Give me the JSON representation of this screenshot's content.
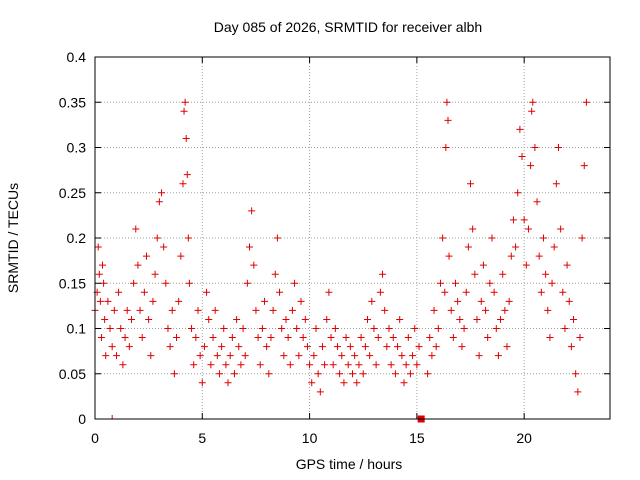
{
  "chart_data": {
    "type": "scatter",
    "title": "Day 085 of 2026, SRMTID for receiver albh",
    "xlabel": "GPS time / hours",
    "ylabel": "SRMTID / TECUs",
    "xlim": [
      0,
      24
    ],
    "ylim": [
      0,
      0.4
    ],
    "grid": true,
    "marker": "plus",
    "color": "#e00000",
    "xticks": [
      {
        "value": 0,
        "label": "0"
      },
      {
        "value": 5,
        "label": "5"
      },
      {
        "value": 10,
        "label": "10"
      },
      {
        "value": 15,
        "label": "15"
      },
      {
        "value": 20,
        "label": "20"
      }
    ],
    "yticks": [
      {
        "value": 0,
        "label": "0"
      },
      {
        "value": 0.05,
        "label": "0.05"
      },
      {
        "value": 0.1,
        "label": "0.1"
      },
      {
        "value": 0.15,
        "label": "0.15"
      },
      {
        "value": 0.2,
        "label": "0.2"
      },
      {
        "value": 0.25,
        "label": "0.25"
      },
      {
        "value": 0.3,
        "label": "0.3"
      },
      {
        "value": 0.35,
        "label": "0.35"
      },
      {
        "value": 0.4,
        "label": "0.4"
      }
    ],
    "zero_markers": [
      {
        "x": 0.8,
        "y": 0,
        "style": "tick"
      },
      {
        "x": 15.2,
        "y": 0,
        "style": "square"
      }
    ],
    "series": [
      {
        "name": "SRMTID",
        "points": [
          [
            0.0,
            0.12
          ],
          [
            0.1,
            0.14
          ],
          [
            0.15,
            0.19
          ],
          [
            0.2,
            0.16
          ],
          [
            0.25,
            0.13
          ],
          [
            0.3,
            0.09
          ],
          [
            0.35,
            0.17
          ],
          [
            0.4,
            0.15
          ],
          [
            0.45,
            0.11
          ],
          [
            0.5,
            0.07
          ],
          [
            0.6,
            0.13
          ],
          [
            0.7,
            0.1
          ],
          [
            0.8,
            0.08
          ],
          [
            0.9,
            0.12
          ],
          [
            1.0,
            0.07
          ],
          [
            1.1,
            0.14
          ],
          [
            1.2,
            0.1
          ],
          [
            1.3,
            0.06
          ],
          [
            1.4,
            0.09
          ],
          [
            1.5,
            0.12
          ],
          [
            1.6,
            0.08
          ],
          [
            1.7,
            0.11
          ],
          [
            1.8,
            0.15
          ],
          [
            1.9,
            0.21
          ],
          [
            2.0,
            0.17
          ],
          [
            2.1,
            0.12
          ],
          [
            2.2,
            0.09
          ],
          [
            2.3,
            0.14
          ],
          [
            2.4,
            0.18
          ],
          [
            2.5,
            0.11
          ],
          [
            2.6,
            0.07
          ],
          [
            2.7,
            0.13
          ],
          [
            2.8,
            0.16
          ],
          [
            2.9,
            0.2
          ],
          [
            3.0,
            0.24
          ],
          [
            3.1,
            0.25
          ],
          [
            3.2,
            0.19
          ],
          [
            3.3,
            0.15
          ],
          [
            3.4,
            0.1
          ],
          [
            3.5,
            0.08
          ],
          [
            3.6,
            0.12
          ],
          [
            3.7,
            0.05
          ],
          [
            3.8,
            0.09
          ],
          [
            3.9,
            0.13
          ],
          [
            4.0,
            0.18
          ],
          [
            4.1,
            0.26
          ],
          [
            4.15,
            0.34
          ],
          [
            4.2,
            0.35
          ],
          [
            4.25,
            0.31
          ],
          [
            4.3,
            0.27
          ],
          [
            4.35,
            0.2
          ],
          [
            4.4,
            0.15
          ],
          [
            4.5,
            0.1
          ],
          [
            4.6,
            0.06
          ],
          [
            4.7,
            0.09
          ],
          [
            4.8,
            0.12
          ],
          [
            4.9,
            0.07
          ],
          [
            5.0,
            0.04
          ],
          [
            5.1,
            0.08
          ],
          [
            5.2,
            0.14
          ],
          [
            5.3,
            0.11
          ],
          [
            5.4,
            0.06
          ],
          [
            5.5,
            0.09
          ],
          [
            5.6,
            0.12
          ],
          [
            5.7,
            0.07
          ],
          [
            5.8,
            0.05
          ],
          [
            5.9,
            0.08
          ],
          [
            6.0,
            0.1
          ],
          [
            6.1,
            0.06
          ],
          [
            6.2,
            0.04
          ],
          [
            6.3,
            0.07
          ],
          [
            6.4,
            0.09
          ],
          [
            6.5,
            0.05
          ],
          [
            6.6,
            0.11
          ],
          [
            6.7,
            0.08
          ],
          [
            6.8,
            0.06
          ],
          [
            6.9,
            0.1
          ],
          [
            7.0,
            0.07
          ],
          [
            7.1,
            0.15
          ],
          [
            7.2,
            0.19
          ],
          [
            7.3,
            0.23
          ],
          [
            7.4,
            0.17
          ],
          [
            7.5,
            0.12
          ],
          [
            7.6,
            0.09
          ],
          [
            7.7,
            0.06
          ],
          [
            7.8,
            0.1
          ],
          [
            7.9,
            0.13
          ],
          [
            8.0,
            0.08
          ],
          [
            8.1,
            0.05
          ],
          [
            8.2,
            0.09
          ],
          [
            8.3,
            0.12
          ],
          [
            8.4,
            0.16
          ],
          [
            8.5,
            0.2
          ],
          [
            8.6,
            0.14
          ],
          [
            8.7,
            0.1
          ],
          [
            8.8,
            0.07
          ],
          [
            8.9,
            0.11
          ],
          [
            9.0,
            0.09
          ],
          [
            9.1,
            0.06
          ],
          [
            9.2,
            0.12
          ],
          [
            9.3,
            0.15
          ],
          [
            9.4,
            0.1
          ],
          [
            9.5,
            0.07
          ],
          [
            9.6,
            0.13
          ],
          [
            9.7,
            0.09
          ],
          [
            9.8,
            0.11
          ],
          [
            9.9,
            0.08
          ],
          [
            10.0,
            0.06
          ],
          [
            10.1,
            0.04
          ],
          [
            10.2,
            0.07
          ],
          [
            10.3,
            0.1
          ],
          [
            10.4,
            0.05
          ],
          [
            10.5,
            0.03
          ],
          [
            10.6,
            0.08
          ],
          [
            10.7,
            0.06
          ],
          [
            10.8,
            0.11
          ],
          [
            10.9,
            0.14
          ],
          [
            11.0,
            0.09
          ],
          [
            11.1,
            0.06
          ],
          [
            11.2,
            0.1
          ],
          [
            11.3,
            0.08
          ],
          [
            11.4,
            0.05
          ],
          [
            11.5,
            0.07
          ],
          [
            11.6,
            0.04
          ],
          [
            11.7,
            0.09
          ],
          [
            11.8,
            0.06
          ],
          [
            11.9,
            0.08
          ],
          [
            12.0,
            0.05
          ],
          [
            12.1,
            0.07
          ],
          [
            12.2,
            0.04
          ],
          [
            12.3,
            0.06
          ],
          [
            12.4,
            0.09
          ],
          [
            12.5,
            0.05
          ],
          [
            12.6,
            0.08
          ],
          [
            12.7,
            0.11
          ],
          [
            12.8,
            0.07
          ],
          [
            12.9,
            0.13
          ],
          [
            13.0,
            0.1
          ],
          [
            13.1,
            0.06
          ],
          [
            13.2,
            0.09
          ],
          [
            13.3,
            0.14
          ],
          [
            13.4,
            0.16
          ],
          [
            13.5,
            0.12
          ],
          [
            13.6,
            0.08
          ],
          [
            13.7,
            0.1
          ],
          [
            13.8,
            0.06
          ],
          [
            13.9,
            0.09
          ],
          [
            14.0,
            0.05
          ],
          [
            14.1,
            0.08
          ],
          [
            14.2,
            0.11
          ],
          [
            14.3,
            0.07
          ],
          [
            14.4,
            0.04
          ],
          [
            14.5,
            0.06
          ],
          [
            14.6,
            0.09
          ],
          [
            14.7,
            0.05
          ],
          [
            14.8,
            0.07
          ],
          [
            14.9,
            0.1
          ],
          [
            15.0,
            0.06
          ],
          [
            15.1,
            0.08
          ],
          [
            15.5,
            0.05
          ],
          [
            15.6,
            0.09
          ],
          [
            15.7,
            0.07
          ],
          [
            15.8,
            0.12
          ],
          [
            15.9,
            0.08
          ],
          [
            16.0,
            0.1
          ],
          [
            16.1,
            0.15
          ],
          [
            16.2,
            0.2
          ],
          [
            16.3,
            0.14
          ],
          [
            16.35,
            0.3
          ],
          [
            16.4,
            0.35
          ],
          [
            16.45,
            0.33
          ],
          [
            16.5,
            0.18
          ],
          [
            16.6,
            0.12
          ],
          [
            16.7,
            0.09
          ],
          [
            16.8,
            0.15
          ],
          [
            16.9,
            0.13
          ],
          [
            17.0,
            0.11
          ],
          [
            17.1,
            0.08
          ],
          [
            17.2,
            0.1
          ],
          [
            17.3,
            0.14
          ],
          [
            17.4,
            0.19
          ],
          [
            17.5,
            0.26
          ],
          [
            17.6,
            0.21
          ],
          [
            17.7,
            0.16
          ],
          [
            17.8,
            0.11
          ],
          [
            17.9,
            0.07
          ],
          [
            18.0,
            0.13
          ],
          [
            18.1,
            0.17
          ],
          [
            18.2,
            0.12
          ],
          [
            18.3,
            0.09
          ],
          [
            18.4,
            0.15
          ],
          [
            18.5,
            0.2
          ],
          [
            18.6,
            0.14
          ],
          [
            18.7,
            0.1
          ],
          [
            18.8,
            0.07
          ],
          [
            18.9,
            0.11
          ],
          [
            19.0,
            0.16
          ],
          [
            19.1,
            0.12
          ],
          [
            19.2,
            0.08
          ],
          [
            19.3,
            0.13
          ],
          [
            19.4,
            0.18
          ],
          [
            19.5,
            0.22
          ],
          [
            19.6,
            0.19
          ],
          [
            19.7,
            0.25
          ],
          [
            19.8,
            0.32
          ],
          [
            19.9,
            0.29
          ],
          [
            20.0,
            0.22
          ],
          [
            20.1,
            0.17
          ],
          [
            20.2,
            0.21
          ],
          [
            20.3,
            0.28
          ],
          [
            20.35,
            0.34
          ],
          [
            20.4,
            0.35
          ],
          [
            20.5,
            0.3
          ],
          [
            20.6,
            0.24
          ],
          [
            20.7,
            0.18
          ],
          [
            20.8,
            0.14
          ],
          [
            20.9,
            0.2
          ],
          [
            21.0,
            0.16
          ],
          [
            21.1,
            0.12
          ],
          [
            21.2,
            0.09
          ],
          [
            21.3,
            0.15
          ],
          [
            21.4,
            0.19
          ],
          [
            21.5,
            0.26
          ],
          [
            21.6,
            0.3
          ],
          [
            21.7,
            0.21
          ],
          [
            21.8,
            0.14
          ],
          [
            21.9,
            0.1
          ],
          [
            22.0,
            0.17
          ],
          [
            22.1,
            0.13
          ],
          [
            22.2,
            0.08
          ],
          [
            22.3,
            0.11
          ],
          [
            22.4,
            0.05
          ],
          [
            22.5,
            0.03
          ],
          [
            22.6,
            0.09
          ],
          [
            22.7,
            0.2
          ],
          [
            22.8,
            0.28
          ],
          [
            22.9,
            0.35
          ]
        ]
      }
    ]
  }
}
